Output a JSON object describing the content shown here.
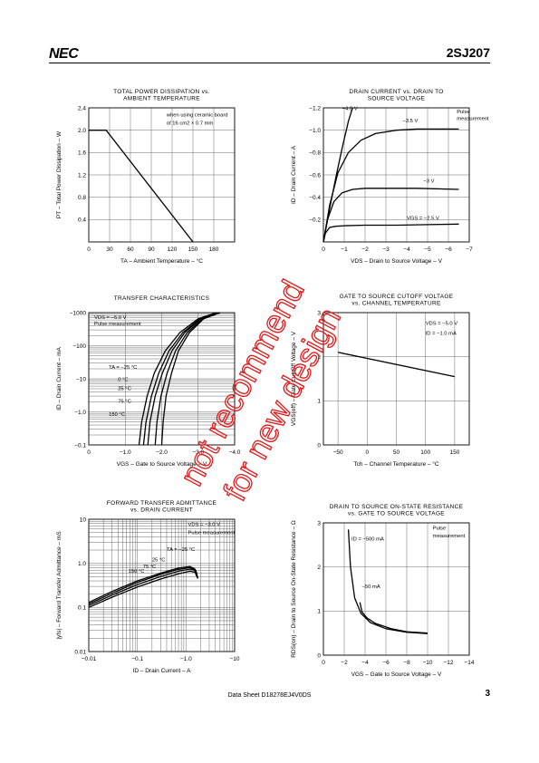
{
  "header": {
    "logo": "NEC",
    "part_number": "2SJ207"
  },
  "footer": {
    "doc_label": "Data Sheet  D18278EJ4V0DS",
    "page_number": "3"
  },
  "watermark": {
    "lines": [
      "not recommend",
      "for new design"
    ],
    "color": "#e01818"
  },
  "chart_data": [
    {
      "id": "pd",
      "type": "line",
      "title_lines": [
        "TOTAL POWER DISSIPATION vs.",
        "AMBIENT TEMPERATURE"
      ],
      "xlabel": "TA – Ambient Temperature – °C",
      "ylabel": "PT – Total Power Dissipation – W",
      "xlim": [
        0,
        210
      ],
      "ylim": [
        0,
        2.4
      ],
      "x_ticks": [
        0,
        30,
        60,
        90,
        120,
        150,
        180
      ],
      "x_tick_labels": [
        "0",
        "30",
        "60",
        "90",
        "120",
        "150",
        "180"
      ],
      "y_ticks": [
        0,
        0.4,
        0.8,
        1.2,
        1.6,
        2.0,
        2.4
      ],
      "y_tick_labels": [
        "",
        "0.4",
        "0.8",
        "1.2",
        "1.6",
        "2.0",
        "2.4"
      ],
      "annotations": [
        {
          "text": "when using ceramic board",
          "x": 112,
          "y": 2.25
        },
        {
          "text": "of 16 cm2 × 0.7 mm",
          "x": 112,
          "y": 2.1
        }
      ],
      "series": [
        {
          "x": [
            0,
            25,
            150
          ],
          "y": [
            2.0,
            2.0,
            0
          ]
        }
      ]
    },
    {
      "id": "id_vds",
      "type": "line",
      "title_lines": [
        "DRAIN CURRENT vs. DRAIN TO",
        "SOURCE VOLTAGE"
      ],
      "xlabel": "VDS – Drain to Source Voltage – V",
      "ylabel": "ID – Drain Current – A",
      "xlim": [
        0,
        -7
      ],
      "ylim": [
        0,
        -1.2
      ],
      "x_ticks": [
        0,
        -1,
        -2,
        -3,
        -4,
        -5,
        -6,
        -7
      ],
      "x_tick_labels": [
        "0",
        "−1",
        "−2",
        "−3",
        "−4",
        "−5",
        "−6",
        "−7"
      ],
      "y_ticks": [
        0,
        -0.2,
        -0.4,
        -0.6,
        -0.8,
        -1.0,
        -1.2
      ],
      "y_tick_labels": [
        "",
        "−0.2",
        "−0.4",
        "−0.6",
        "−0.8",
        "−1.0",
        "−1.2"
      ],
      "annotations": [
        {
          "text": "Pulse",
          "x": -6.4,
          "y": -1.15
        },
        {
          "text": "measurement",
          "x": -6.4,
          "y": -1.09
        }
      ],
      "series": [
        {
          "name": "−4.0 V",
          "x": [
            0,
            -0.3,
            -0.6,
            -0.9,
            -1.2,
            -1.4
          ],
          "y": [
            0,
            -0.3,
            -0.58,
            -0.84,
            -1.08,
            -1.2
          ],
          "label_at": [
            -0.9,
            -1.18
          ]
        },
        {
          "name": "−3.5 V",
          "x": [
            0,
            -0.3,
            -0.7,
            -1.2,
            -1.8,
            -2.5,
            -3.5,
            -4.5,
            -5.5,
            -6.5
          ],
          "y": [
            0,
            -0.33,
            -0.62,
            -0.8,
            -0.91,
            -0.97,
            -1.0,
            -1.01,
            -1.01,
            -1.01
          ],
          "label_at": [
            -3.8,
            -1.07
          ]
        },
        {
          "name": "−3 V",
          "x": [
            0,
            -0.2,
            -0.5,
            -0.9,
            -1.4,
            -2.0,
            -3.0,
            -4.5,
            -6.5
          ],
          "y": [
            0,
            -0.2,
            -0.36,
            -0.44,
            -0.47,
            -0.48,
            -0.48,
            -0.48,
            -0.47
          ],
          "label_at": [
            -4.8,
            -0.53
          ]
        },
        {
          "name": "VGS = −2.5 V",
          "x": [
            0,
            -0.1,
            -0.3,
            -0.6,
            -1.0,
            -2.0,
            -3.5,
            -5.0,
            -6.5
          ],
          "y": [
            0,
            -0.08,
            -0.13,
            -0.14,
            -0.145,
            -0.15,
            -0.15,
            -0.155,
            -0.16
          ],
          "label_at": [
            -4.0,
            -0.2
          ]
        }
      ]
    },
    {
      "id": "transfer",
      "type": "line",
      "title_lines": [
        "TRANSFER CHARACTERISTICS"
      ],
      "xlabel": "VGS – Gate to Source Voltage – V",
      "ylabel": "ID – Drain Current – mA",
      "xlim": [
        0,
        -4.0
      ],
      "ylim": [
        -0.1,
        -1000
      ],
      "yscale": "log",
      "x_ticks": [
        0,
        -1.0,
        -2.0,
        -3.0,
        -4.0
      ],
      "x_tick_labels": [
        "0",
        "−1.0",
        "−2.0",
        "−3.0",
        "−4.0"
      ],
      "y_ticks": [
        -0.1,
        -1.0,
        -10,
        -100,
        -1000
      ],
      "y_tick_labels": [
        "−0.1",
        "−1.0",
        "−10",
        "−100",
        "−1000"
      ],
      "annotations": [
        {
          "text": "VDS = −5.0 V",
          "x": -0.15,
          "y": -650
        },
        {
          "text": "Pulse measurement",
          "x": -0.15,
          "y": -420
        }
      ],
      "series": [
        {
          "name": "TA = −25 °C",
          "x": [
            -1.38,
            -1.45,
            -1.6,
            -1.8,
            -2.1,
            -2.5,
            -3.0,
            -3.5
          ],
          "y": [
            -0.1,
            -0.5,
            -3,
            -15,
            -70,
            -250,
            -650,
            -1000
          ],
          "label_at": [
            -0.55,
            -20
          ]
        },
        {
          "name": "0 °C",
          "x": [
            -1.5,
            -1.57,
            -1.72,
            -1.92,
            -2.2,
            -2.58,
            -3.05,
            -3.5
          ],
          "y": [
            -0.1,
            -0.5,
            -3,
            -15,
            -70,
            -250,
            -650,
            -1000
          ],
          "label_at": [
            -0.8,
            -8.5
          ]
        },
        {
          "name": "25 °C",
          "x": [
            -1.62,
            -1.68,
            -1.82,
            -2.02,
            -2.28,
            -2.63,
            -3.08,
            -3.55
          ],
          "y": [
            -0.1,
            -0.5,
            -3,
            -15,
            -70,
            -250,
            -650,
            -1000
          ],
          "label_at": [
            -0.8,
            -4.5
          ]
        },
        {
          "name": "75 °C",
          "x": [
            -1.82,
            -1.87,
            -1.98,
            -2.15,
            -2.38,
            -2.7,
            -3.12,
            -3.6
          ],
          "y": [
            -0.1,
            -0.5,
            -3,
            -15,
            -70,
            -250,
            -650,
            -1000
          ],
          "label_at": [
            -0.8,
            -1.9
          ]
        },
        {
          "name": "150 °C",
          "x": [
            -2.0,
            -2.04,
            -2.12,
            -2.27,
            -2.46,
            -2.76,
            -3.15,
            -3.6
          ],
          "y": [
            -0.1,
            -0.5,
            -3,
            -15,
            -70,
            -250,
            -650,
            -1000
          ],
          "label_at": [
            -0.55,
            -0.75
          ]
        }
      ]
    },
    {
      "id": "cutoff",
      "type": "line",
      "title_lines": [
        "GATE TO SOURCE CUTOFF VOLTAGE",
        "vs. CHANNEL TEMPERATURE"
      ],
      "xlabel": "Tch – Channel Temperature – °C",
      "ylabel": "VGS(off) – Gate Cut-Off Voltage – V",
      "xlim": [
        -75,
        175
      ],
      "ylim": [
        0,
        3
      ],
      "x_ticks": [
        -50,
        0,
        50,
        100,
        150
      ],
      "x_tick_labels": [
        "−50",
        "0",
        "50",
        "100",
        "150"
      ],
      "y_ticks": [
        0,
        1,
        2,
        3
      ],
      "y_tick_labels": [
        "0",
        "1",
        "2",
        "3"
      ],
      "annotations": [
        {
          "text": "VDS = −5.0 V",
          "x": 100,
          "y": 2.72
        },
        {
          "text": "ID = −1.0 mA",
          "x": 100,
          "y": 2.5
        }
      ],
      "series": [
        {
          "x": [
            -50,
            150
          ],
          "y": [
            2.1,
            1.55
          ]
        }
      ]
    },
    {
      "id": "yfs",
      "type": "line",
      "title_lines": [
        "FORWARD TRANSFER ADMITTANCE",
        "vs. DRAIN CURRENT"
      ],
      "xlabel": "ID – Drain Current – A",
      "ylabel": "|yfs| – Forward Transfer Admittance – mS",
      "xlim": [
        -0.01,
        -10
      ],
      "ylim": [
        0.01,
        10
      ],
      "xscale": "log",
      "yscale": "log",
      "x_ticks": [
        -0.01,
        -0.1,
        -1.0,
        -10
      ],
      "x_tick_labels": [
        "−0.01",
        "−0.1",
        "−1.0",
        "−10"
      ],
      "y_ticks": [
        0.01,
        0.1,
        1.0,
        10
      ],
      "y_tick_labels": [
        "0.01",
        "0.1",
        "1.0",
        "10"
      ],
      "annotations": [
        {
          "text": "VDS = −3.0 V",
          "x": -1.1,
          "y": 7.0
        },
        {
          "text": "Pulse measurement",
          "x": -1.1,
          "y": 4.6
        }
      ],
      "series": [
        {
          "name": "TA = −25 °C",
          "x": [
            -0.01,
            -0.03,
            -0.1,
            -0.3,
            -0.7,
            -1.2,
            -1.5,
            -1.6
          ],
          "y": [
            0.13,
            0.23,
            0.4,
            0.6,
            0.78,
            0.85,
            0.75,
            0.55
          ],
          "label_at": [
            -0.4,
            1.9
          ]
        },
        {
          "name": "25 °C",
          "x": [
            -0.01,
            -0.03,
            -0.1,
            -0.3,
            -0.7,
            -1.2,
            -1.55,
            -1.65
          ],
          "y": [
            0.12,
            0.21,
            0.37,
            0.56,
            0.73,
            0.8,
            0.72,
            0.5
          ],
          "label_at": [
            -0.2,
            1.1
          ]
        },
        {
          "name": "75 °C",
          "x": [
            -0.01,
            -0.03,
            -0.1,
            -0.3,
            -0.7,
            -1.2,
            -1.6,
            -1.7
          ],
          "y": [
            0.11,
            0.19,
            0.33,
            0.5,
            0.66,
            0.74,
            0.68,
            0.47
          ],
          "label_at": [
            -0.13,
            0.78
          ]
        },
        {
          "name": "150 °C",
          "x": [
            -0.01,
            -0.03,
            -0.1,
            -0.3,
            -0.7,
            -1.2,
            -1.65,
            -1.75
          ],
          "y": [
            0.1,
            0.17,
            0.29,
            0.44,
            0.58,
            0.66,
            0.62,
            0.45
          ],
          "label_at": [
            -0.065,
            0.62
          ]
        }
      ]
    },
    {
      "id": "rds",
      "type": "line",
      "title_lines": [
        "DRAIN TO SOURCE ON-STATE RESISTANCE",
        "vs. GATE TO SOURCE VOLTAGE"
      ],
      "xlabel": "VGS – Gate to Source Voltage – V",
      "ylabel": "RDS(on) – Drain to Source On-State Resistance – Ω",
      "xlim": [
        0,
        -14
      ],
      "ylim": [
        0,
        3
      ],
      "x_ticks": [
        0,
        -2,
        -4,
        -6,
        -8,
        -10,
        -12,
        -14
      ],
      "x_tick_labels": [
        "0",
        "−2",
        "−4",
        "−6",
        "−8",
        "−10",
        "−12",
        "−14"
      ],
      "y_ticks": [
        0,
        1,
        2,
        3
      ],
      "y_tick_labels": [
        "0",
        "1",
        "2",
        "3"
      ],
      "annotations": [
        {
          "text": "Pulse",
          "x": -10.5,
          "y": 2.85
        },
        {
          "text": "measurement",
          "x": -10.5,
          "y": 2.67
        }
      ],
      "series": [
        {
          "name": "ID = −500 mA",
          "x": [
            -2.4,
            -2.6,
            -3.0,
            -3.6,
            -4.5,
            -6.0,
            -8.0,
            -10.0
          ],
          "y": [
            2.85,
            2.0,
            1.3,
            0.95,
            0.74,
            0.6,
            0.52,
            0.49
          ],
          "label_at": [
            -2.7,
            2.6
          ]
        },
        {
          "name": "−50 mA",
          "x": [
            -3.5,
            -3.7,
            -4.2,
            -5.0,
            -6.5,
            -8.0,
            -10.0
          ],
          "y": [
            1.2,
            0.98,
            0.84,
            0.72,
            0.6,
            0.53,
            0.5
          ],
          "label_at": [
            -3.7,
            1.52
          ]
        }
      ]
    }
  ]
}
